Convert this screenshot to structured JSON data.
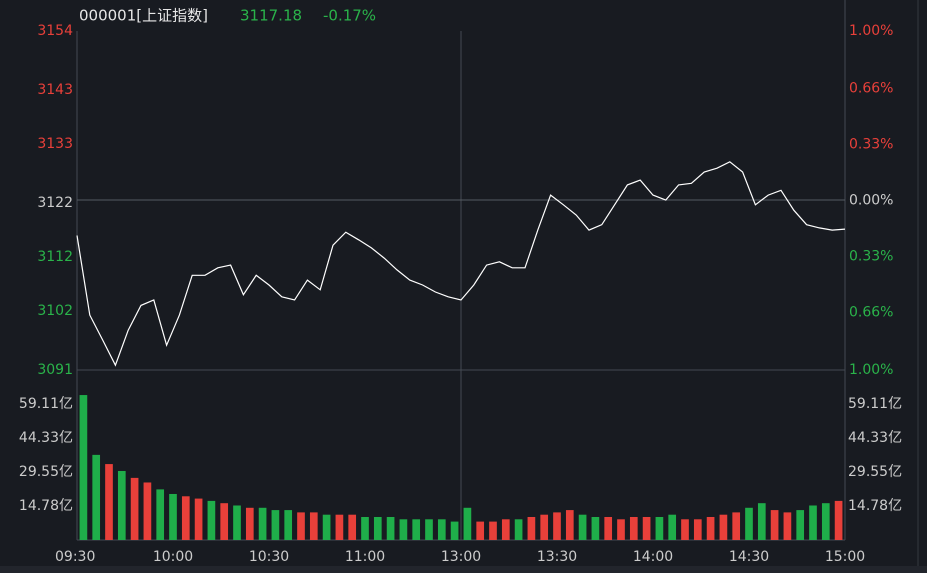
{
  "chart_data": [
    {
      "type": "line",
      "title": "000001[上证指数]",
      "subtitle": "3117.18",
      "change": "-0.17%",
      "color": "#ffffff",
      "values": [
        3116,
        3101.2,
        3096.6,
        3091.9,
        3098.4,
        3103,
        3104,
        3095.6,
        3101.2,
        3108.6,
        3108.6,
        3110,
        3110.5,
        3105,
        3108.6,
        3106.8,
        3104.6,
        3104,
        3107.7,
        3105.9,
        3114.2,
        3116.6,
        3115.2,
        3113.7,
        3111.8,
        3109.6,
        3107.7,
        3106.8,
        3105.5,
        3104.6,
        3104,
        3106.8,
        3110.5,
        3111.1,
        3110,
        3110,
        3117,
        3123.5,
        3121.7,
        3119.8,
        3117,
        3118,
        3121.7,
        3125.4,
        3126.3,
        3123.5,
        3122.6,
        3125.4,
        3125.7,
        3127.8,
        3128.5,
        3129.7,
        3127.8,
        3121.7,
        3123.5,
        3124.4,
        3120.7,
        3118,
        3117.4,
        3117,
        3117.18
      ],
      "xlim": [
        0,
        240
      ],
      "ylim": [
        3091,
        3154
      ],
      "yticks": [
        3091,
        3102,
        3112,
        3122,
        3133,
        3143,
        3154
      ],
      "ytick_colors": [
        "#2ab34a",
        "#2ab34a",
        "#2ab34a",
        "#cccccc",
        "#e8403a",
        "#e8403a",
        "#e8403a"
      ],
      "y2lim": [
        -1,
        1
      ],
      "y2ticks": [
        {
          "value": -1,
          "label": "1.00%"
        },
        {
          "value": -0.66,
          "label": "0.66%"
        },
        {
          "value": -0.33,
          "label": "0.33%"
        },
        {
          "value": 0,
          "label": "0.00%"
        },
        {
          "value": 0.33,
          "label": "0.33%"
        },
        {
          "value": 0.66,
          "label": "0.66%"
        },
        {
          "value": 1,
          "label": "1.00%"
        }
      ]
    },
    {
      "type": "bar",
      "values": [
        63,
        37,
        33,
        30,
        27,
        25,
        22,
        20,
        19,
        18,
        17,
        16,
        15,
        14,
        14,
        13,
        13,
        12,
        12,
        11,
        11,
        11,
        10,
        10,
        10,
        9,
        9,
        9,
        9,
        8,
        14,
        8,
        8,
        9,
        9,
        10,
        11,
        12,
        13,
        11,
        10,
        10,
        9,
        10,
        10,
        10,
        11,
        9,
        9,
        10,
        11,
        12,
        14,
        16,
        13,
        12,
        13,
        15,
        16,
        17
      ],
      "colors": [
        "#1fae4a",
        "#1fae4a",
        "#e8403a",
        "#1fae4a",
        "#e8403a",
        "#e8403a",
        "#1fae4a",
        "#1fae4a",
        "#e8403a",
        "#e8403a",
        "#1fae4a",
        "#e8403a",
        "#1fae4a",
        "#e8403a",
        "#1fae4a",
        "#1fae4a",
        "#1fae4a",
        "#e8403a",
        "#e8403a",
        "#1fae4a",
        "#e8403a",
        "#e8403a",
        "#1fae4a",
        "#1fae4a",
        "#1fae4a",
        "#1fae4a",
        "#1fae4a",
        "#1fae4a",
        "#1fae4a",
        "#1fae4a",
        "#1fae4a",
        "#e8403a",
        "#e8403a",
        "#e8403a",
        "#1fae4a",
        "#e8403a",
        "#e8403a",
        "#e8403a",
        "#e8403a",
        "#1fae4a",
        "#1fae4a",
        "#e8403a",
        "#e8403a",
        "#e8403a",
        "#e8403a",
        "#1fae4a",
        "#1fae4a",
        "#e8403a",
        "#e8403a",
        "#e8403a",
        "#e8403a",
        "#e8403a",
        "#1fae4a",
        "#1fae4a",
        "#e8403a",
        "#e8403a",
        "#1fae4a",
        "#1fae4a",
        "#1fae4a",
        "#e8403a"
      ],
      "xlim": [
        0,
        240
      ],
      "xticks": [
        {
          "value": 0,
          "label": "09:30"
        },
        {
          "value": 30,
          "label": "10:00"
        },
        {
          "value": 60,
          "label": "10:30"
        },
        {
          "value": 90,
          "label": "11:00"
        },
        {
          "value": 120,
          "label": "13:00"
        },
        {
          "value": 150,
          "label": "13:30"
        },
        {
          "value": 180,
          "label": "14:00"
        },
        {
          "value": 210,
          "label": "14:30"
        },
        {
          "value": 240,
          "label": "15:00"
        }
      ],
      "ylim": [
        0,
        73.89
      ],
      "yticks": [
        {
          "value": 14.78,
          "label": "14.78亿"
        },
        {
          "value": 29.55,
          "label": "29.55亿"
        },
        {
          "value": 44.33,
          "label": "44.33亿"
        },
        {
          "value": 59.11,
          "label": "59.11亿"
        }
      ]
    }
  ]
}
